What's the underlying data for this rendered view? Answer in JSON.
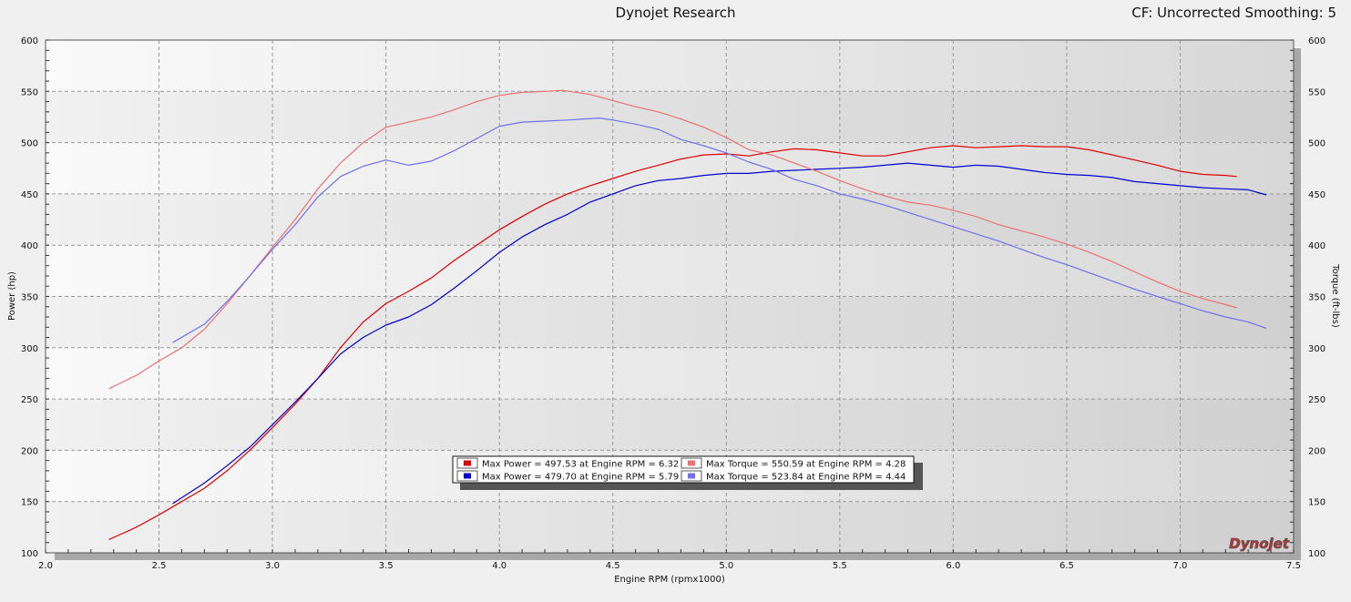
{
  "header": {
    "title": "Dynojet Research",
    "cf_info": "CF: Uncorrected Smoothing: 5"
  },
  "watermark": "Dynojet",
  "chart_data": {
    "type": "line",
    "xlabel": "Engine RPM (rpmx1000)",
    "ylabel_left": "Power (hp)",
    "ylabel_right": "Torque (ft-lbs)",
    "xlim": [
      2.0,
      7.5
    ],
    "ylim": [
      100,
      600
    ],
    "x_ticks": [
      "2.0",
      "2.5",
      "3.0",
      "3.5",
      "4.0",
      "4.5",
      "5.0",
      "5.5",
      "6.0",
      "6.5",
      "7.0",
      "7.5"
    ],
    "y_ticks": [
      "100",
      "150",
      "200",
      "250",
      "300",
      "350",
      "400",
      "450",
      "500",
      "550",
      "600"
    ],
    "grid": true,
    "colors": {
      "power_red": "#e00000",
      "power_blue": "#0000d0",
      "torque_red": "#f07070",
      "torque_blue": "#7070f0"
    },
    "series": [
      {
        "key": "power_red",
        "x": [
          2.28,
          2.4,
          2.5,
          2.6,
          2.7,
          2.8,
          2.9,
          3.0,
          3.1,
          3.2,
          3.3,
          3.4,
          3.5,
          3.6,
          3.7,
          3.8,
          3.9,
          4.0,
          4.1,
          4.2,
          4.3,
          4.4,
          4.5,
          4.6,
          4.7,
          4.8,
          4.9,
          5.0,
          5.1,
          5.2,
          5.3,
          5.4,
          5.5,
          5.6,
          5.7,
          5.8,
          5.9,
          6.0,
          6.1,
          6.2,
          6.3,
          6.4,
          6.5,
          6.6,
          6.7,
          6.8,
          6.9,
          7.0,
          7.1,
          7.2,
          7.25
        ],
        "values": [
          113,
          125,
          137,
          150,
          163,
          180,
          200,
          222,
          245,
          270,
          300,
          325,
          343,
          355,
          368,
          385,
          400,
          415,
          428,
          440,
          450,
          458,
          465,
          472,
          478,
          484,
          488,
          489,
          487,
          491,
          494,
          493,
          490,
          487,
          487,
          491,
          495,
          497,
          495,
          496,
          497,
          496,
          496,
          493,
          488,
          483,
          478,
          472,
          469,
          468,
          467
        ]
      },
      {
        "key": "power_blue",
        "x": [
          2.56,
          2.7,
          2.8,
          2.9,
          3.0,
          3.1,
          3.2,
          3.3,
          3.4,
          3.5,
          3.6,
          3.7,
          3.8,
          3.9,
          4.0,
          4.1,
          4.2,
          4.3,
          4.4,
          4.5,
          4.6,
          4.7,
          4.8,
          4.9,
          5.0,
          5.1,
          5.2,
          5.3,
          5.4,
          5.5,
          5.6,
          5.7,
          5.8,
          5.9,
          6.0,
          6.1,
          6.2,
          6.3,
          6.4,
          6.5,
          6.6,
          6.7,
          6.8,
          6.9,
          7.0,
          7.1,
          7.2,
          7.3,
          7.38
        ],
        "values": [
          148,
          168,
          185,
          203,
          225,
          247,
          270,
          294,
          310,
          322,
          330,
          342,
          358,
          375,
          393,
          408,
          420,
          430,
          442,
          450,
          458,
          463,
          465,
          468,
          470,
          470,
          472,
          473,
          474,
          475,
          476,
          478,
          480,
          478,
          476,
          478,
          477,
          474,
          471,
          469,
          468,
          466,
          462,
          460,
          458,
          456,
          455,
          454,
          449
        ]
      },
      {
        "key": "torque_red",
        "x": [
          2.28,
          2.4,
          2.5,
          2.6,
          2.7,
          2.8,
          2.9,
          3.0,
          3.1,
          3.2,
          3.3,
          3.4,
          3.5,
          3.6,
          3.7,
          3.8,
          3.9,
          4.0,
          4.1,
          4.2,
          4.28,
          4.4,
          4.5,
          4.6,
          4.7,
          4.8,
          4.9,
          5.0,
          5.1,
          5.2,
          5.3,
          5.4,
          5.5,
          5.6,
          5.7,
          5.8,
          5.9,
          6.0,
          6.1,
          6.2,
          6.3,
          6.4,
          6.5,
          6.6,
          6.7,
          6.8,
          6.9,
          7.0,
          7.1,
          7.2,
          7.25
        ],
        "values": [
          260,
          273,
          287,
          300,
          318,
          343,
          370,
          398,
          425,
          455,
          480,
          500,
          515,
          520,
          525,
          532,
          540,
          546,
          549,
          550,
          551,
          547,
          541,
          535,
          530,
          523,
          515,
          505,
          493,
          488,
          480,
          472,
          463,
          455,
          448,
          442,
          439,
          434,
          428,
          420,
          414,
          408,
          401,
          393,
          384,
          374,
          364,
          355,
          348,
          342,
          339
        ]
      },
      {
        "key": "torque_blue",
        "x": [
          2.56,
          2.7,
          2.8,
          2.9,
          3.0,
          3.1,
          3.2,
          3.3,
          3.4,
          3.5,
          3.6,
          3.7,
          3.8,
          3.9,
          4.0,
          4.1,
          4.2,
          4.3,
          4.44,
          4.5,
          4.6,
          4.7,
          4.8,
          4.9,
          5.0,
          5.1,
          5.2,
          5.3,
          5.4,
          5.5,
          5.6,
          5.7,
          5.8,
          5.9,
          6.0,
          6.1,
          6.2,
          6.3,
          6.4,
          6.5,
          6.6,
          6.7,
          6.8,
          6.9,
          7.0,
          7.1,
          7.2,
          7.3,
          7.38
        ],
        "values": [
          305,
          323,
          345,
          370,
          396,
          420,
          447,
          467,
          477,
          483,
          478,
          482,
          492,
          504,
          516,
          520,
          521,
          522,
          524,
          522,
          518,
          513,
          503,
          497,
          490,
          481,
          474,
          464,
          458,
          450,
          445,
          439,
          432,
          425,
          418,
          411,
          404,
          396,
          388,
          381,
          373,
          365,
          357,
          350,
          343,
          336,
          330,
          325,
          319
        ]
      }
    ],
    "legend": [
      {
        "key": "power_red",
        "label": "Max Power = 497.53 at Engine RPM = 6.32"
      },
      {
        "key": "torque_red",
        "label": "Max Torque = 550.59 at Engine RPM = 4.28"
      },
      {
        "key": "power_blue",
        "label": "Max Power = 479.70 at Engine RPM = 5.79"
      },
      {
        "key": "torque_blue",
        "label": "Max Torque = 523.84 at Engine RPM = 4.44"
      }
    ]
  }
}
